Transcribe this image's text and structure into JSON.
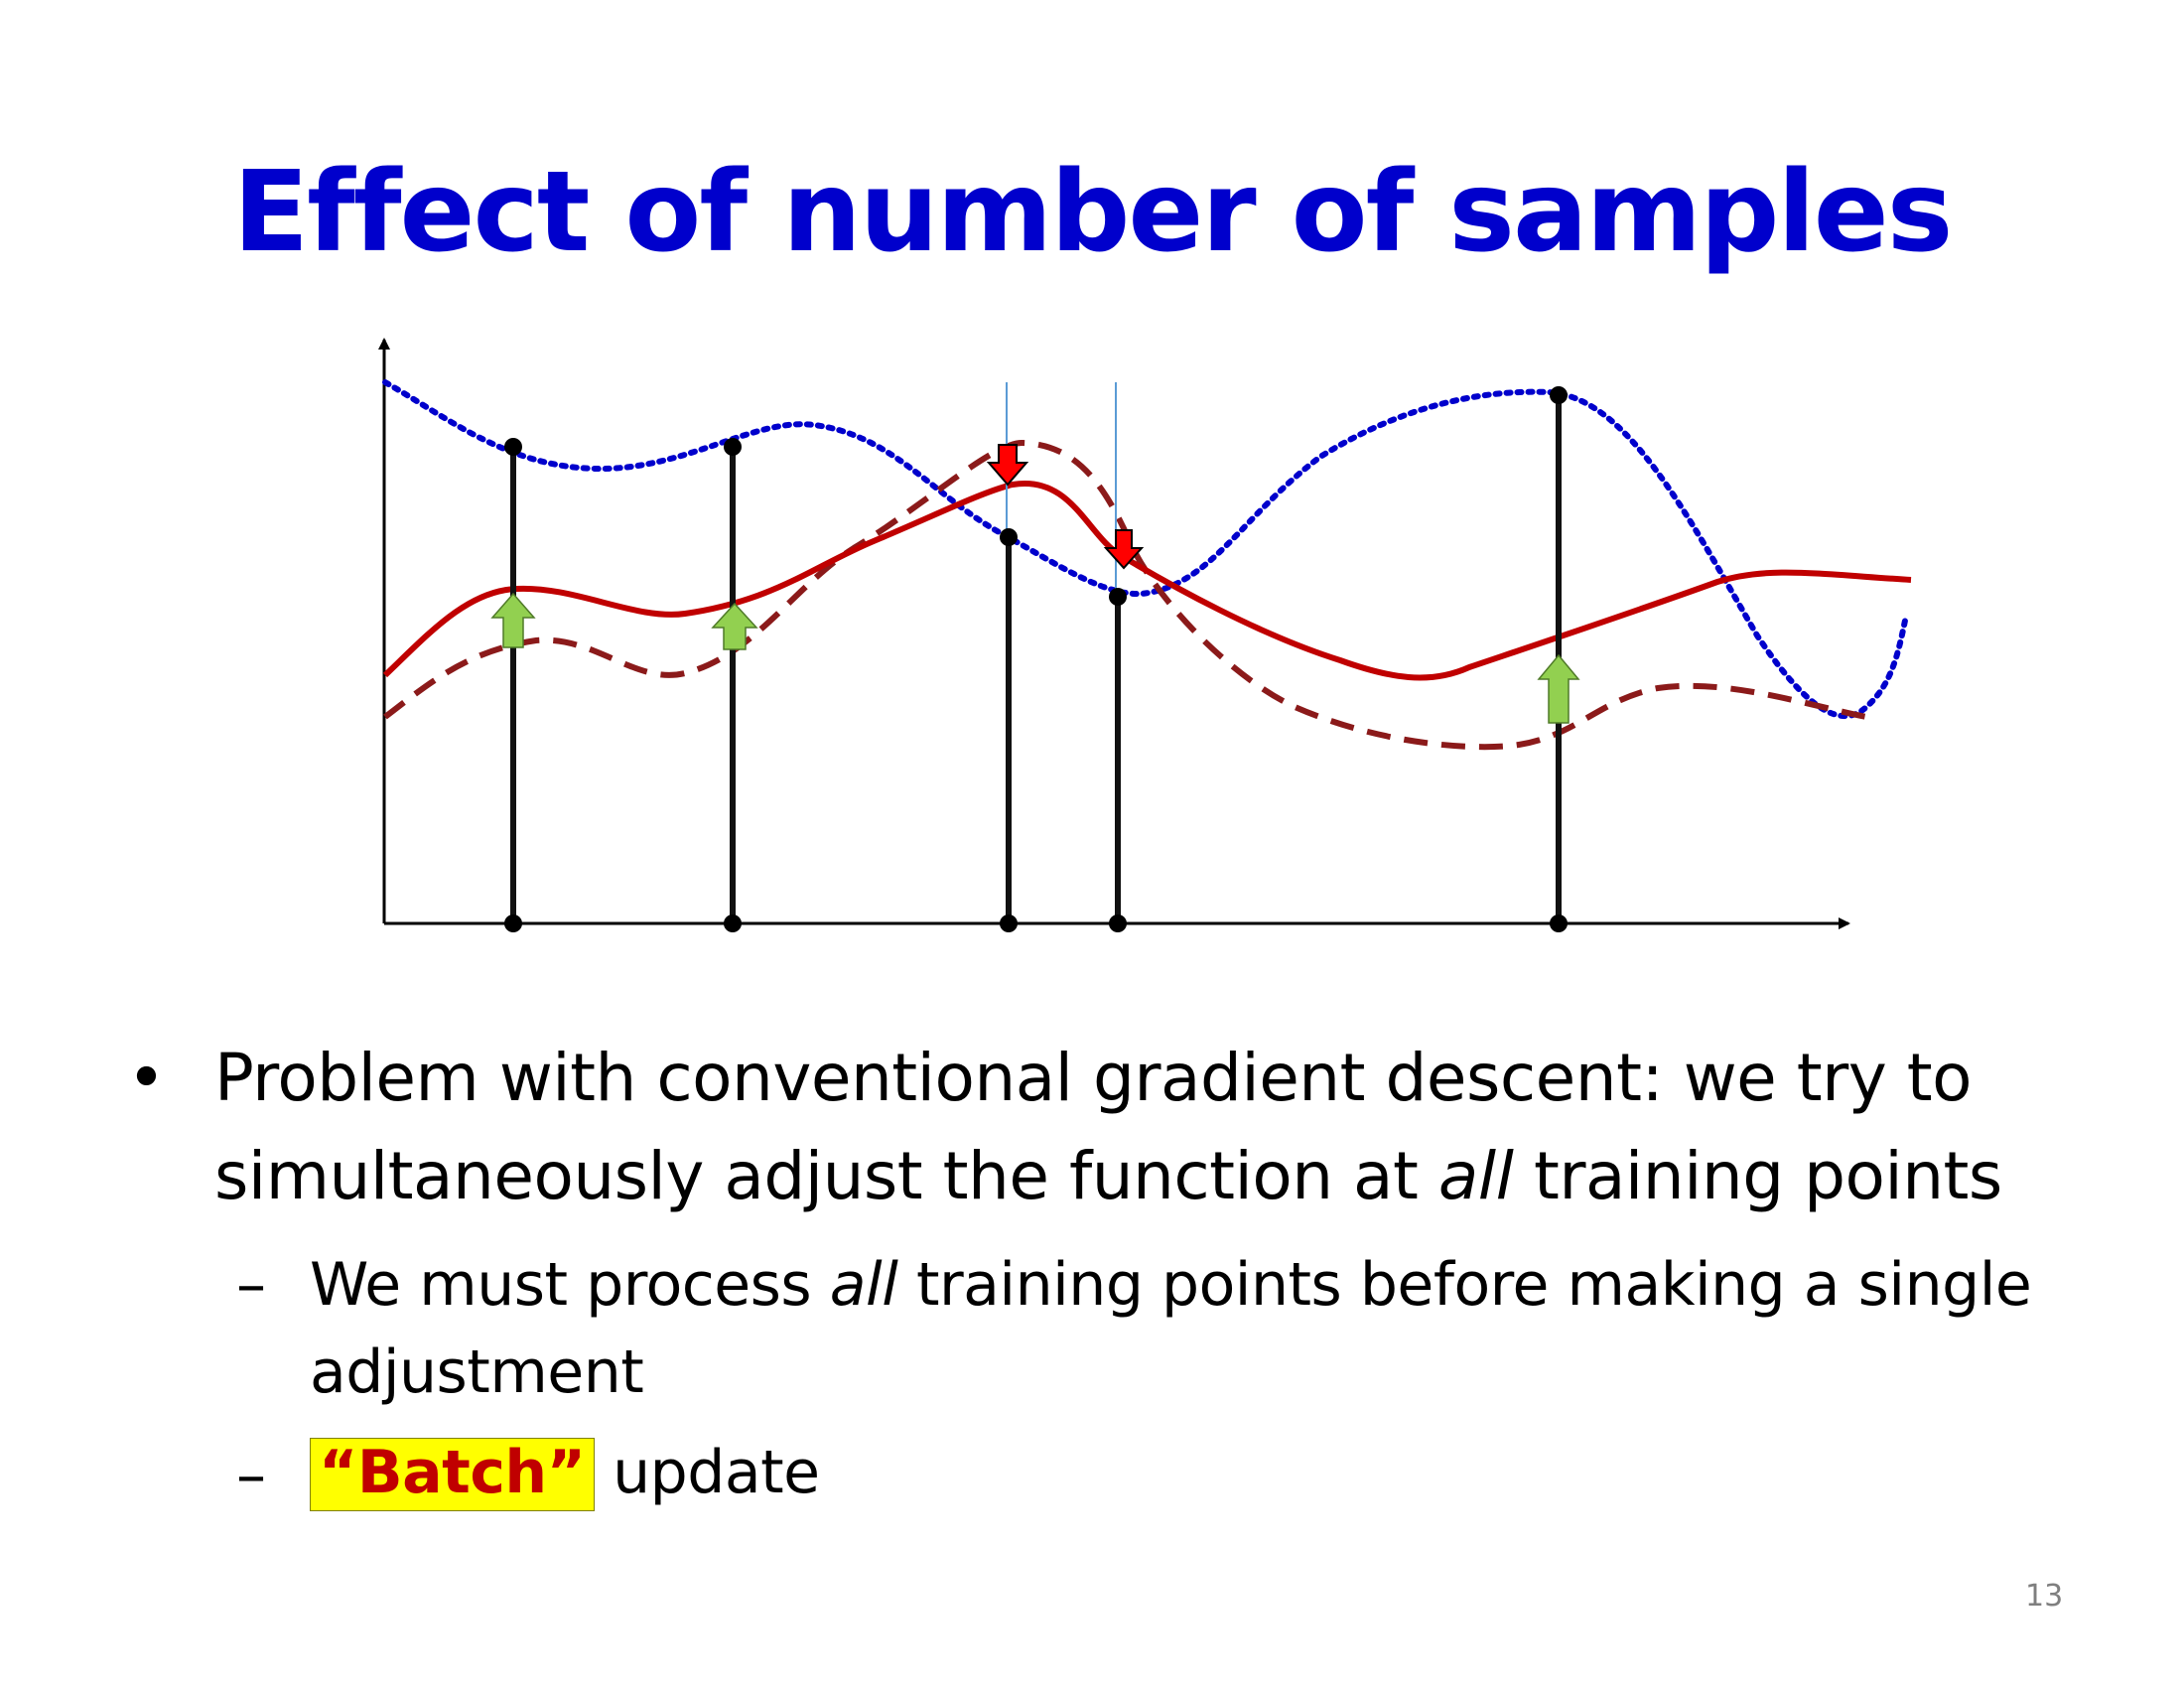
{
  "slide": {
    "title": "Effect of number of samples",
    "page_number": "13"
  },
  "bullets": {
    "marker": "•",
    "main_line1": "Problem with conventional gradient descent: we try to",
    "main_line2_pre": "simultaneously adjust the function at ",
    "main_line2_em": "all",
    "main_line2_post": " training points",
    "sub_marker": "–",
    "sub1_line1_pre": "We must process ",
    "sub1_line1_em": "all",
    "sub1_line1_post": " training points before making a single",
    "sub1_line2": "adjustment",
    "sub2_batch": "“Batch”",
    "sub2_post": " update"
  },
  "diagram": {
    "colors": {
      "target_curve": "#0000cc",
      "current_fit": "#c00000",
      "previous_fit": "#8b1a1a",
      "sample_line": "#111111",
      "up_arrow": "#92d050",
      "down_arrow": "#ff0000",
      "thin_line": "#5b9bd5"
    },
    "icons": [
      "up-arrow-icon",
      "down-arrow-icon"
    ]
  }
}
